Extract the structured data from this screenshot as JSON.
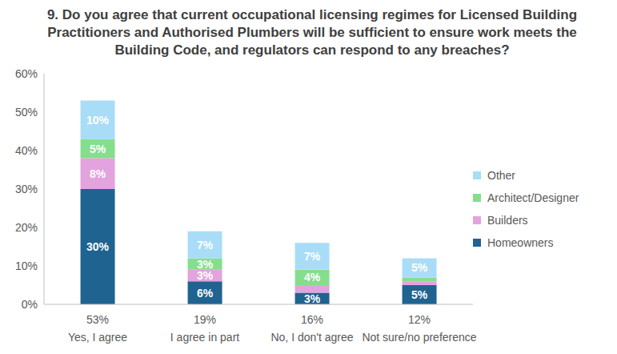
{
  "chart_data": {
    "type": "bar",
    "title": "9. Do you agree that current occupational licensing regimes for Licensed Building Practitioners and Authorised Plumbers will be sufficient to ensure work meets the Building Code, and regulators can respond to any breaches?",
    "categories": [
      "Yes, I agree",
      "I agree in part",
      "No, I don't agree",
      "Not sure/no preference"
    ],
    "totals": [
      53,
      19,
      16,
      12
    ],
    "total_labels": [
      "53%",
      "19%",
      "16%",
      "12%"
    ],
    "series": [
      {
        "name": "Homeowners",
        "color": "#1f6391",
        "values": [
          30,
          6,
          3,
          5
        ],
        "value_labels": [
          "30%",
          "6%",
          "3%",
          "5%"
        ]
      },
      {
        "name": "Builders",
        "color": "#e3a3de",
        "values": [
          8,
          3,
          2,
          1
        ],
        "value_labels": [
          "8%",
          "3%",
          null,
          null
        ]
      },
      {
        "name": "Architect/Designer",
        "color": "#84de8e",
        "values": [
          5,
          3,
          4,
          1
        ],
        "value_labels": [
          "5%",
          "3%",
          "4%",
          null
        ]
      },
      {
        "name": "Other",
        "color": "#a9ddf7",
        "values": [
          10,
          7,
          7,
          5
        ],
        "value_labels": [
          "10%",
          "7%",
          "7%",
          "5%"
        ]
      }
    ],
    "ylim": [
      0,
      60
    ],
    "yticks": [
      {
        "value": 0,
        "label": "0%"
      },
      {
        "value": 10,
        "label": "10%"
      },
      {
        "value": 20,
        "label": "20%"
      },
      {
        "value": 30,
        "label": "30%"
      },
      {
        "value": 40,
        "label": "40%"
      },
      {
        "value": 50,
        "label": "50%"
      },
      {
        "value": 60,
        "label": "60%"
      }
    ],
    "stacked": true,
    "data_labels": true,
    "legend": "right",
    "grid": false
  }
}
